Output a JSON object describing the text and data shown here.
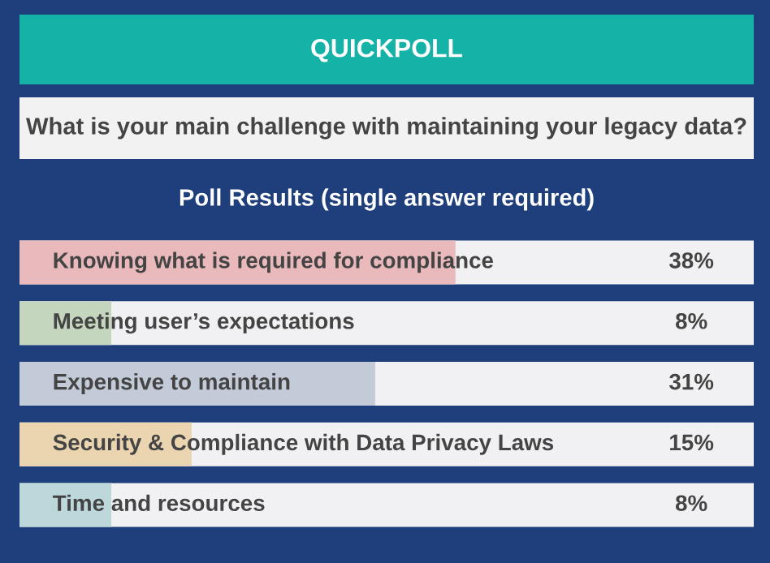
{
  "chart_data": {
    "type": "bar",
    "orientation": "horizontal",
    "title": "QUICKPOLL",
    "subtitle": "What is your main challenge with maintaining your legacy data?",
    "annotations": [
      "Poll Results (single answer required)"
    ],
    "categories": [
      "Knowing what is required for compliance",
      "Meeting user’s expectations",
      "Expensive to maintain",
      "Security & Compliance with Data Privacy Laws",
      "Time and resources"
    ],
    "values": [
      38,
      8,
      31,
      15,
      8
    ],
    "value_labels": [
      "38%",
      "8%",
      "31%",
      "15%",
      "8%"
    ],
    "colors": [
      "#e9b9bc",
      "#c4d6bd",
      "#c3cbd8",
      "#ead5b0",
      "#bcd8db"
    ],
    "xlim": [
      0,
      64
    ]
  }
}
